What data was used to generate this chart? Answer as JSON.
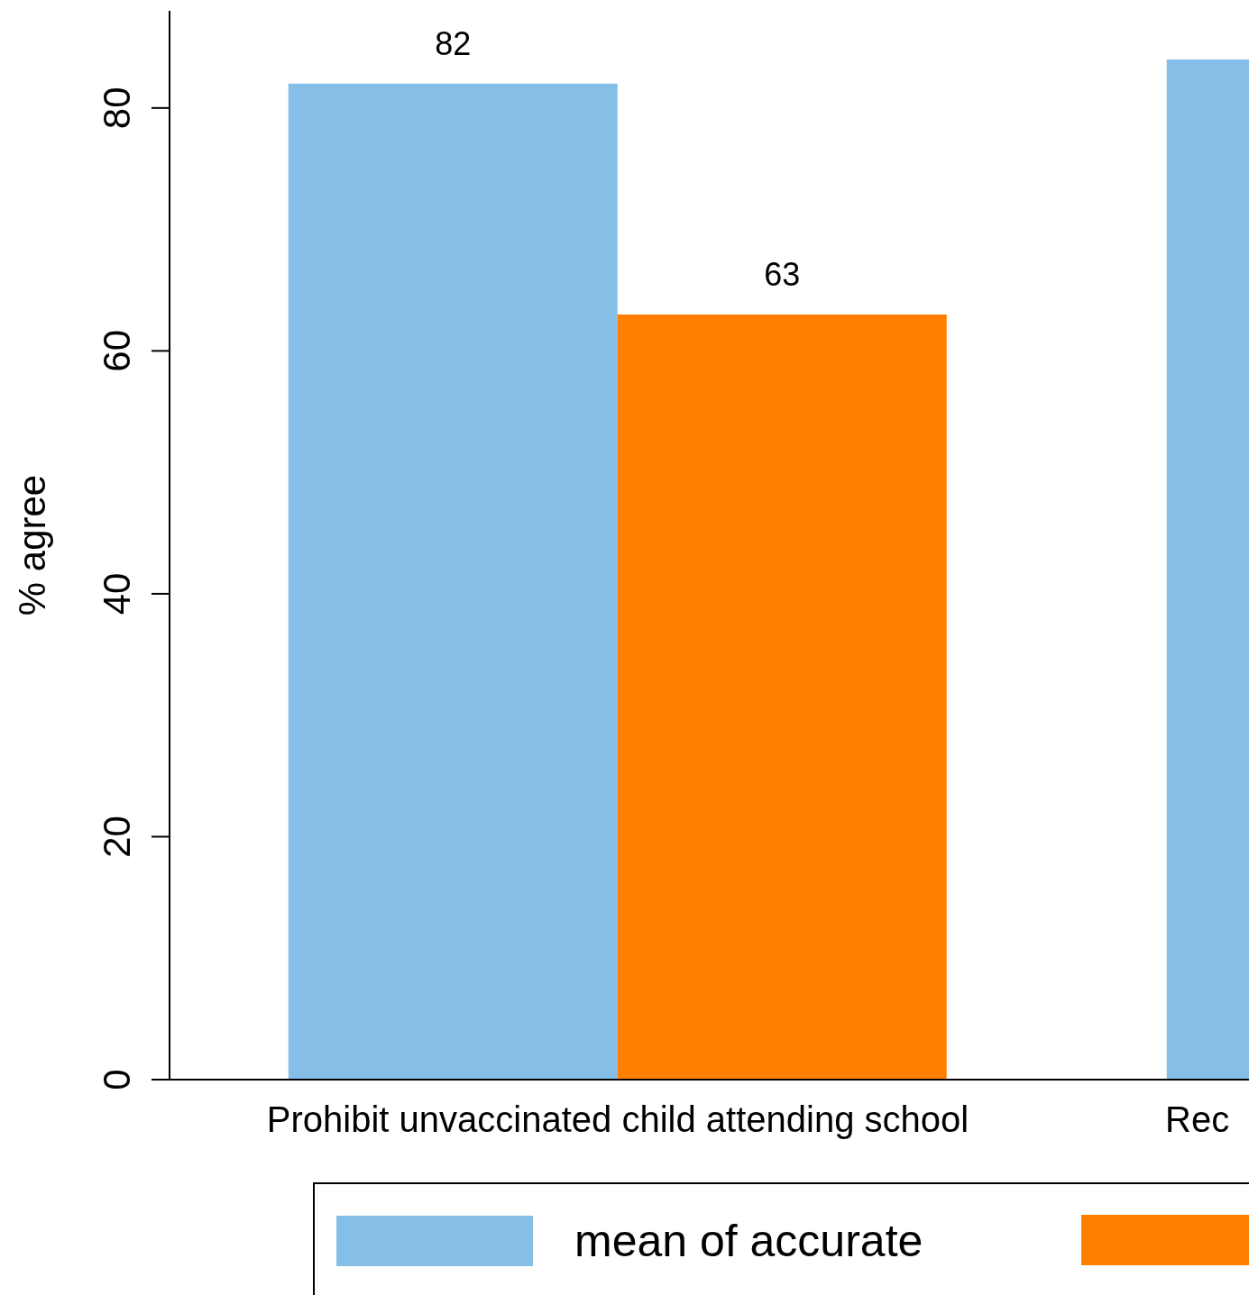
{
  "chart_data": {
    "type": "bar",
    "ylabel": "% agree",
    "categories": [
      "Prohibit unvaccinated child attending school",
      "Rec"
    ],
    "series": [
      {
        "name": "mean of accurate",
        "color": "#85bfe8",
        "values": [
          82,
          84
        ],
        "value_labels": [
          "82",
          null
        ]
      },
      {
        "color": "#ff7f00",
        "values": [
          63,
          null
        ],
        "value_labels": [
          "63",
          null
        ]
      }
    ],
    "ylim": [
      0,
      88
    ],
    "yticks": [
      0,
      20,
      40,
      60,
      80
    ],
    "grid": false,
    "legend": "bottom"
  }
}
